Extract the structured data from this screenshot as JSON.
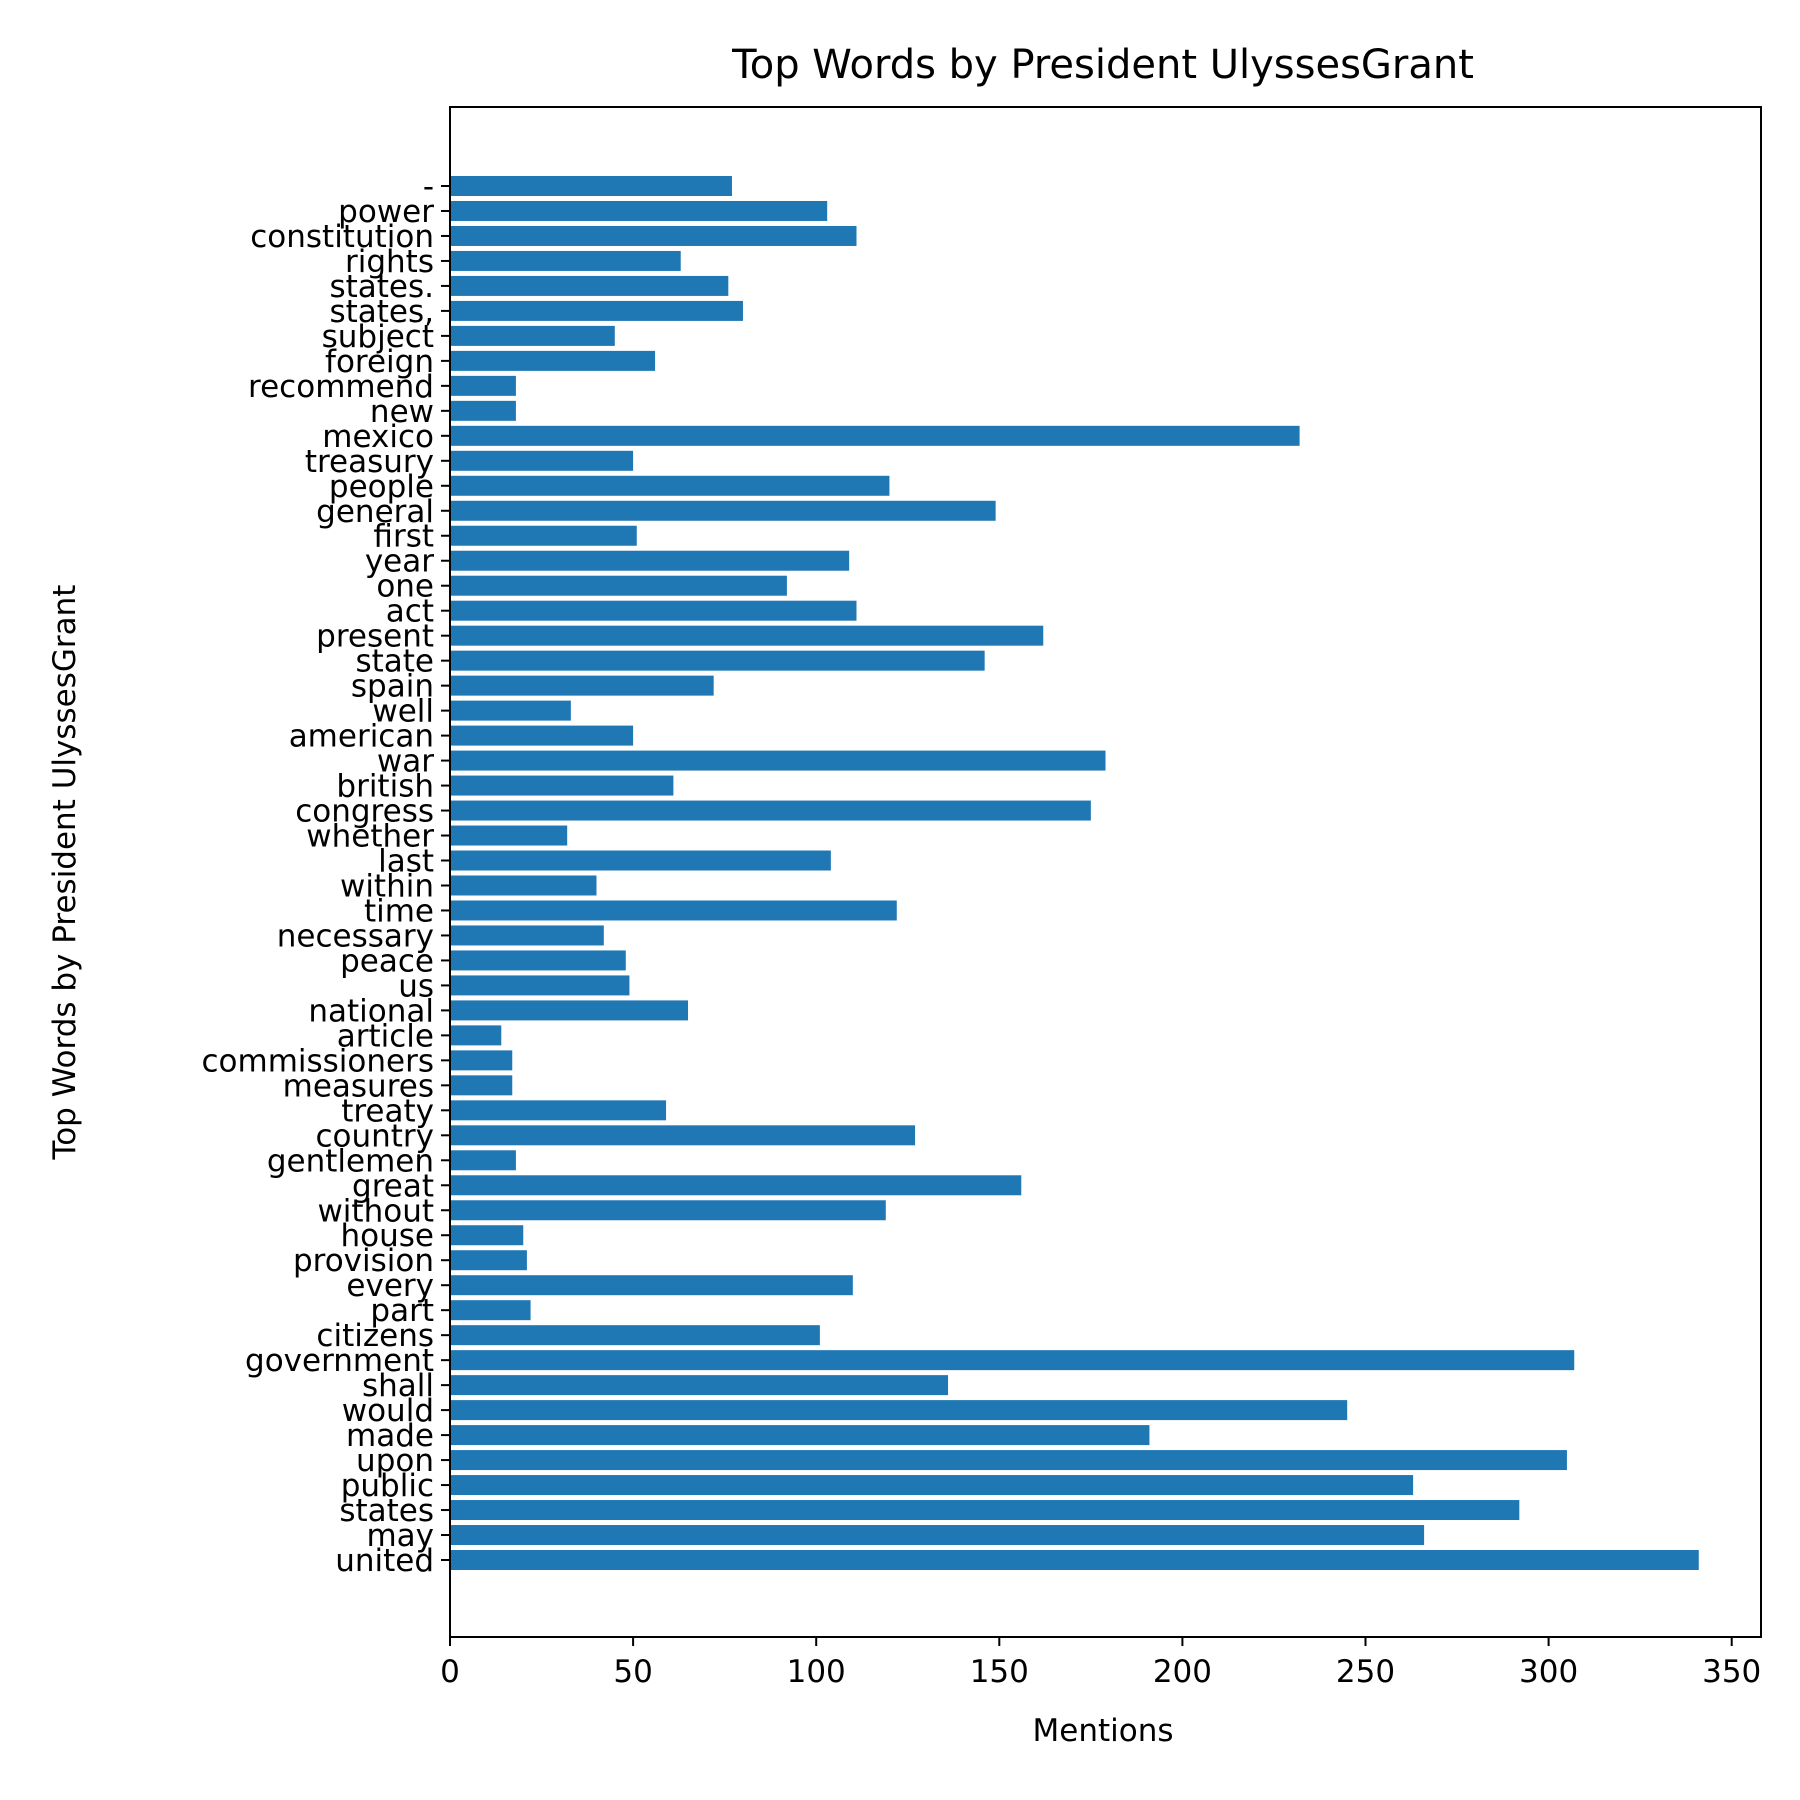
{
  "chart_data": {
    "type": "bar",
    "orientation": "horizontal",
    "title": "Top Words by President UlyssesGrant",
    "xlabel": "Mentions",
    "ylabel": "Top Words by President UlyssesGrant",
    "xlim": [
      0,
      358
    ],
    "xticks": [
      0,
      50,
      100,
      150,
      200,
      250,
      300,
      350
    ],
    "grid": false,
    "bar_color": "#1f77b4",
    "categories": [
      "united",
      "may",
      "states",
      "public",
      "upon",
      "made",
      "would",
      "shall",
      "government",
      "citizens",
      "part",
      "every",
      "provision",
      "house",
      "without",
      "great",
      "gentlemen",
      "country",
      "treaty",
      "measures",
      "commissioners",
      "article",
      "national",
      "us",
      "peace",
      "necessary",
      "time",
      "within",
      "last",
      "whether",
      "congress",
      "british",
      "war",
      "american",
      "well",
      "spain",
      "state",
      "present",
      "act",
      "one",
      "year",
      "first",
      "general",
      "people",
      "treasury",
      "mexico",
      "new",
      "recommend",
      "foreign",
      "subject",
      "states,",
      "states.",
      "rights",
      "constitution",
      "power",
      "-"
    ],
    "values": [
      341,
      266,
      292,
      263,
      305,
      191,
      245,
      136,
      307,
      101,
      22,
      110,
      21,
      20,
      119,
      156,
      18,
      127,
      59,
      17,
      17,
      14,
      65,
      49,
      48,
      42,
      122,
      40,
      104,
      32,
      175,
      61,
      179,
      50,
      33,
      72,
      146,
      162,
      111,
      92,
      109,
      51,
      149,
      120,
      50,
      232,
      18,
      18,
      56,
      45,
      80,
      76,
      63,
      111,
      103,
      77
    ]
  }
}
